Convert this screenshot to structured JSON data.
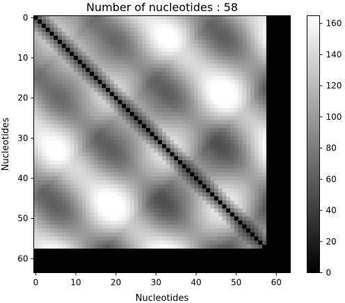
{
  "chart_data": {
    "type": "heatmap",
    "title": "Number of nucleotides : 58",
    "xlabel": "Nucleotides",
    "ylabel": "Nucleotides",
    "grid": false,
    "colormap": "gray",
    "matrix_size": 64,
    "n_nucleotides": 58,
    "xlim": [
      -0.5,
      63.5
    ],
    "ylim": [
      63.5,
      -0.5
    ],
    "x_ticks": [
      0,
      10,
      20,
      30,
      40,
      50,
      60
    ],
    "y_ticks": [
      0,
      10,
      20,
      30,
      40,
      50,
      60
    ],
    "x_tick_labels": [
      "0",
      "10",
      "20",
      "30",
      "40",
      "50",
      "60"
    ],
    "y_tick_labels": [
      "0",
      "10",
      "20",
      "30",
      "40",
      "50",
      "60"
    ],
    "colorbar": {
      "range": [
        0,
        165
      ],
      "ticks": [
        0,
        20,
        40,
        60,
        80,
        100,
        120,
        140,
        160
      ],
      "tick_labels": [
        "0",
        "20",
        "40",
        "60",
        "80",
        "100",
        "120",
        "140",
        "160"
      ]
    }
  }
}
